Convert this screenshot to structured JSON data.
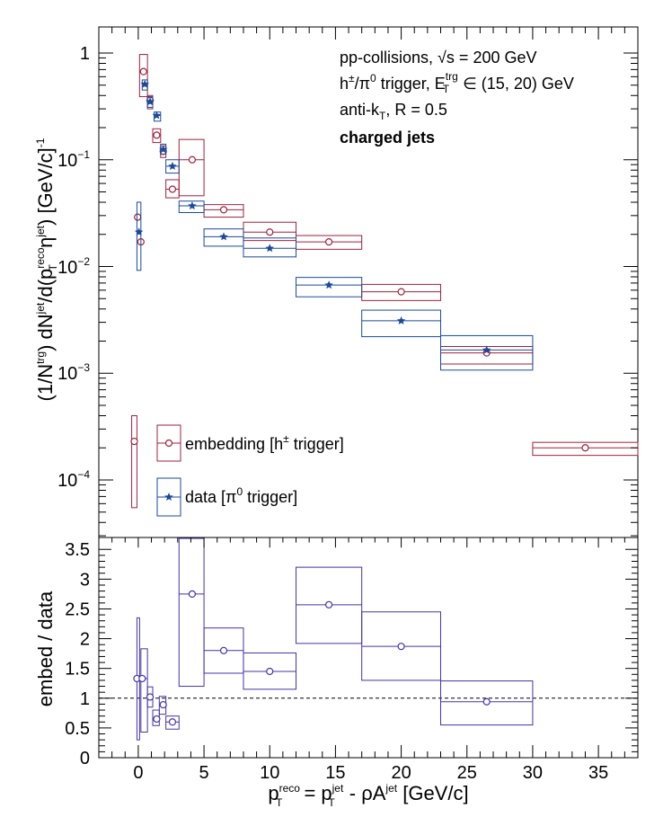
{
  "chart_data": [
    {
      "type": "scatter",
      "panel": "top",
      "ylabel": "(1/N^trg) dN^jet/d(p_T^reco η^jet) [GeV/c]^-1",
      "yscale": "log",
      "ylim": [
        3e-05,
        1.7
      ],
      "xlim": [
        -3,
        38
      ],
      "grid": false,
      "y_ticks": [
        "1",
        "10^-1",
        "10^-2",
        "10^-3",
        "10^-4"
      ],
      "annotations": [
        "pp-collisions, √s = 200 GeV",
        "h±/π0 trigger, E_T^trg ∈ (15, 20) GeV",
        "anti-k_T, R = 0.5",
        "charged jets"
      ],
      "legend_position": "bottom-left",
      "series": [
        {
          "name": "embedding [h± trigger]",
          "color": "#a0203c",
          "marker": "open-circle",
          "points": [
            {
              "x": -0.3,
              "y": 0.00023,
              "box": [
                -0.5,
                -0.1,
                5.5e-05,
                0.0004
              ]
            },
            {
              "x": -0.05,
              "y": 0.029,
              "box": null
            },
            {
              "x": 0.2,
              "y": 0.017,
              "box": null
            },
            {
              "x": 0.4,
              "y": 0.67,
              "box": [
                0.1,
                0.7,
                0.39,
                0.97
              ]
            },
            {
              "x": 0.9,
              "y": 0.36,
              "box": [
                0.7,
                1.1,
                0.3,
                0.4
              ]
            },
            {
              "x": 1.4,
              "y": 0.17,
              "box": [
                1.1,
                1.7,
                0.145,
                0.195
              ]
            },
            {
              "x": 1.9,
              "y": 0.12,
              "box": [
                1.7,
                2.1,
                0.105,
                0.135
              ]
            },
            {
              "x": 2.6,
              "y": 0.053,
              "box": [
                2.1,
                3.1,
                0.044,
                0.065
              ]
            },
            {
              "x": 4.1,
              "y": 0.1,
              "box": [
                3.1,
                5.0,
                0.046,
                0.155
              ]
            },
            {
              "x": 6.5,
              "y": 0.034,
              "box": [
                5.0,
                8.0,
                0.029,
                0.038
              ]
            },
            {
              "x": 10,
              "y": 0.021,
              "box": [
                8.0,
                12.0,
                0.0175,
                0.026
              ]
            },
            {
              "x": 14.5,
              "y": 0.017,
              "box": [
                12.0,
                17.0,
                0.0145,
                0.0195
              ]
            },
            {
              "x": 20,
              "y": 0.0058,
              "box": [
                17.0,
                23.0,
                0.0048,
                0.0068
              ]
            },
            {
              "x": 26.5,
              "y": 0.00155,
              "box": [
                23.0,
                30.0,
                0.00122,
                0.00178
              ]
            },
            {
              "x": 34,
              "y": 0.0002,
              "box": [
                30.0,
                38.0,
                0.00017,
                0.000225
              ]
            }
          ]
        },
        {
          "name": "data [π0 trigger]",
          "color": "#1a4a9a",
          "marker": "filled-star",
          "points": [
            {
              "x": 0.05,
              "y": 0.021,
              "box": [
                -0.1,
                0.2,
                0.0092,
                0.04
              ]
            },
            {
              "x": 0.5,
              "y": 0.51,
              "box": [
                0.3,
                0.7,
                0.45,
                0.56
              ]
            },
            {
              "x": 0.9,
              "y": 0.35,
              "box": [
                0.7,
                1.1,
                0.31,
                0.39
              ]
            },
            {
              "x": 1.4,
              "y": 0.26,
              "box": [
                1.2,
                1.7,
                0.23,
                0.28
              ]
            },
            {
              "x": 1.9,
              "y": 0.125,
              "box": [
                1.7,
                2.1,
                0.113,
                0.14
              ]
            },
            {
              "x": 2.6,
              "y": 0.087,
              "box": [
                2.1,
                3.1,
                0.075,
                0.1
              ]
            },
            {
              "x": 4.1,
              "y": 0.037,
              "box": [
                3.1,
                5.0,
                0.032,
                0.041
              ]
            },
            {
              "x": 6.5,
              "y": 0.019,
              "box": [
                5.0,
                8.0,
                0.0155,
                0.0225
              ]
            },
            {
              "x": 10,
              "y": 0.0148,
              "box": [
                8.0,
                12.0,
                0.0123,
                0.0185
              ]
            },
            {
              "x": 14.5,
              "y": 0.0067,
              "box": [
                12.0,
                17.0,
                0.0052,
                0.0079
              ]
            },
            {
              "x": 20,
              "y": 0.0031,
              "box": [
                17.0,
                23.0,
                0.0022,
                0.0039
              ]
            },
            {
              "x": 26.5,
              "y": 0.00165,
              "box": [
                23.0,
                30.0,
                0.00107,
                0.00225
              ]
            }
          ]
        }
      ]
    },
    {
      "type": "scatter",
      "panel": "bottom",
      "ylabel": "embed / data",
      "xlabel": "p_T^reco = p_T^jet - ρA^jet [GeV/c]",
      "ylim": [
        0,
        3.7
      ],
      "xlim": [
        -3,
        38
      ],
      "grid": false,
      "reference_line": 1,
      "x_ticks": [
        "0",
        "5",
        "10",
        "15",
        "20",
        "25",
        "30",
        "35"
      ],
      "y_ticks": [
        "0",
        "0.5",
        "1",
        "1.5",
        "2",
        "2.5",
        "3",
        "3.5"
      ],
      "series": [
        {
          "name": "",
          "color": "#4433aa",
          "marker": "open-circle",
          "points": [
            {
              "x": -0.1,
              "y": 1.33,
              "box": [
                -0.1,
                0.1,
                0.3,
                2.35
              ]
            },
            {
              "x": 0.3,
              "y": 1.33,
              "box": [
                0.2,
                0.7,
                0.43,
                1.83
              ]
            },
            {
              "x": 0.9,
              "y": 1.02,
              "box": [
                0.7,
                1.1,
                0.85,
                1.19
              ]
            },
            {
              "x": 1.4,
              "y": 0.65,
              "box": [
                1.1,
                1.6,
                0.54,
                0.8
              ]
            },
            {
              "x": 1.9,
              "y": 0.89,
              "box": [
                1.6,
                2.1,
                0.73,
                1.03
              ]
            },
            {
              "x": 2.6,
              "y": 0.6,
              "box": [
                2.1,
                3.1,
                0.48,
                0.7
              ]
            },
            {
              "x": 4.1,
              "y": 2.75,
              "box": [
                3.1,
                5.0,
                1.2,
                3.75
              ]
            },
            {
              "x": 6.5,
              "y": 1.8,
              "box": [
                5.0,
                8.0,
                1.42,
                2.18
              ]
            },
            {
              "x": 10,
              "y": 1.45,
              "box": [
                8.0,
                12.0,
                1.15,
                1.76
              ]
            },
            {
              "x": 14.5,
              "y": 2.57,
              "box": [
                12.0,
                17.0,
                1.92,
                3.2
              ]
            },
            {
              "x": 20,
              "y": 1.87,
              "box": [
                17.0,
                23.0,
                1.3,
                2.45
              ]
            },
            {
              "x": 26.5,
              "y": 0.94,
              "box": [
                23.0,
                30.0,
                0.55,
                1.29
              ]
            }
          ]
        }
      ]
    }
  ]
}
